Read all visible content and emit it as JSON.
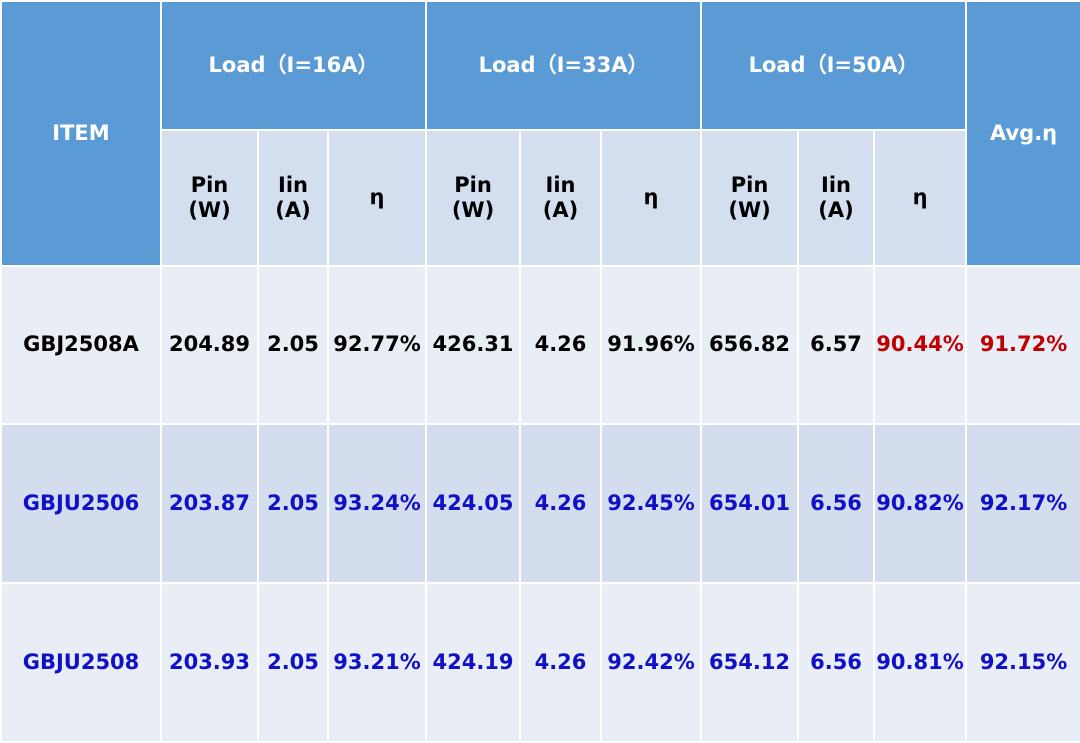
{
  "table": {
    "header": {
      "item": "ITEM",
      "groups": [
        "Load（I=16A）",
        "Load（I=33A）",
        "Load（I=50A）"
      ],
      "avg": "Avg.η",
      "subheaders": [
        "Pin\n(W)",
        "Iin\n(A)",
        "η"
      ]
    },
    "rows": [
      {
        "cells": [
          "GBJ2508A",
          "204.89",
          "2.05",
          "92.77%",
          "426.31",
          "4.26",
          "91.96%",
          "656.82",
          "6.57",
          "90.44%",
          "91.72%"
        ],
        "colors": [
          "#000000",
          "#000000",
          "#000000",
          "#000000",
          "#000000",
          "#000000",
          "#000000",
          "#000000",
          "#000000",
          "#c00000",
          "#c00000"
        ]
      },
      {
        "cells": [
          "GBJU2506",
          "203.87",
          "2.05",
          "93.24%",
          "424.05",
          "4.26",
          "92.45%",
          "654.01",
          "6.56",
          "90.82%",
          "92.17%"
        ],
        "colors": [
          "#1010c8",
          "#1010c8",
          "#1010c8",
          "#1010c8",
          "#1010c8",
          "#1010c8",
          "#1010c8",
          "#1010c8",
          "#1010c8",
          "#1010c8",
          "#1010c8"
        ]
      },
      {
        "cells": [
          "GBJU2508",
          "203.93",
          "2.05",
          "93.21%",
          "424.19",
          "4.26",
          "92.42%",
          "654.12",
          "6.56",
          "90.81%",
          "92.15%"
        ],
        "colors": [
          "#1010c8",
          "#1010c8",
          "#1010c8",
          "#1010c8",
          "#1010c8",
          "#1010c8",
          "#1010c8",
          "#1010c8",
          "#1010c8",
          "#1010c8",
          "#1010c8"
        ]
      }
    ]
  }
}
